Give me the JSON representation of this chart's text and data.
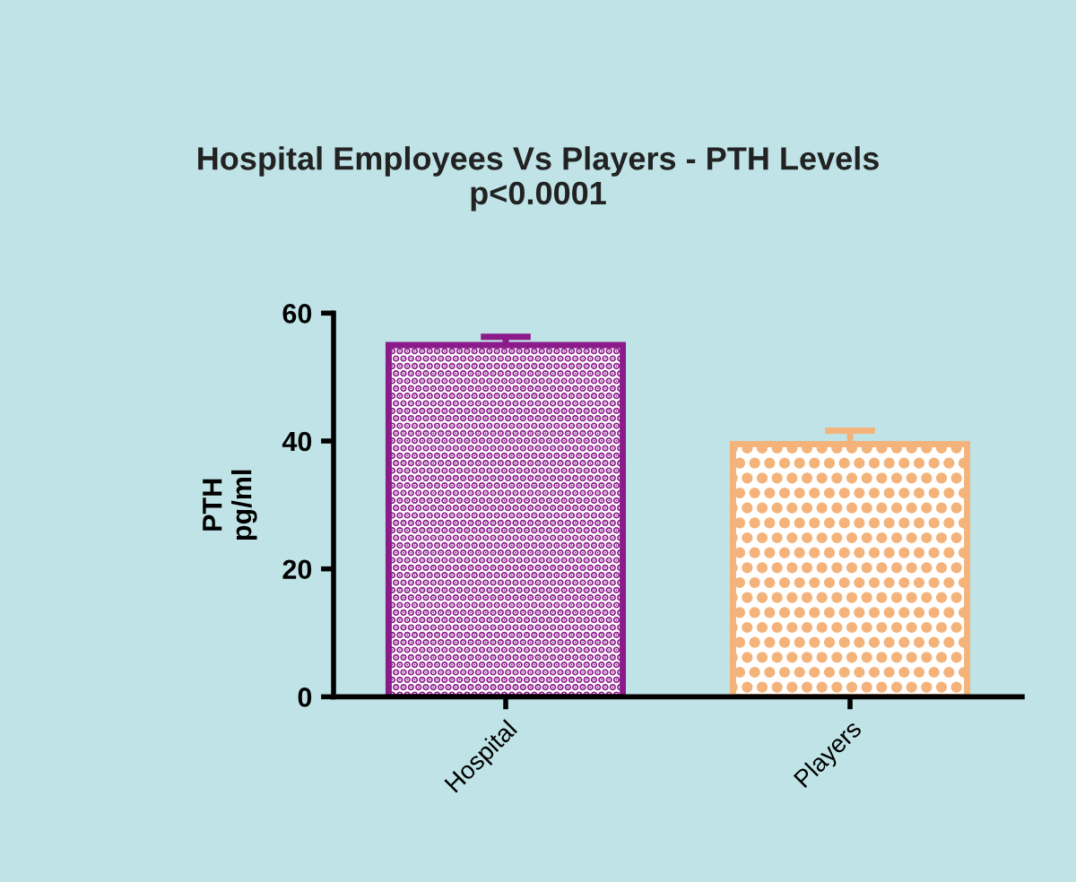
{
  "chart_data": {
    "type": "bar",
    "title": "Hospital Employees Vs Players - PTH Levels",
    "subtitle": "p<0.0001",
    "ylabel": "PTH\npg/ml",
    "categories": [
      "Hospital",
      "Players"
    ],
    "values": [
      55.0,
      39.5
    ],
    "errors": [
      1.3,
      2.1
    ],
    "colors": [
      "#8b1a8b",
      "#f4b37a"
    ],
    "ylim": [
      0,
      60
    ],
    "yticks": [
      0,
      20,
      40,
      60
    ],
    "grid": false,
    "legend": false
  }
}
